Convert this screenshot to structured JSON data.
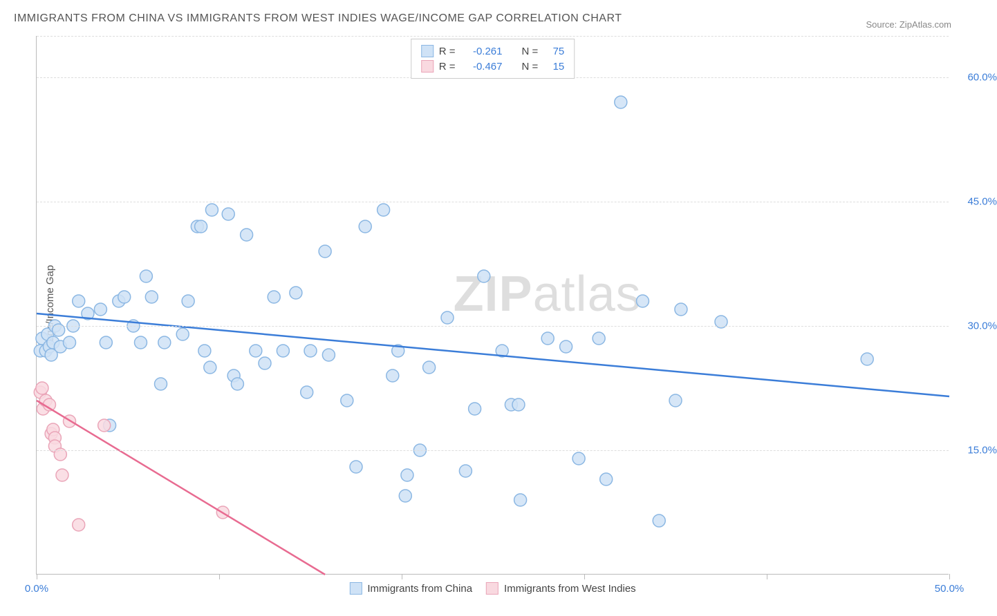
{
  "title": "IMMIGRANTS FROM CHINA VS IMMIGRANTS FROM WEST INDIES WAGE/INCOME GAP CORRELATION CHART",
  "source": "Source: ZipAtlas.com",
  "ylabel": "Wage/Income Gap",
  "watermark_bold": "ZIP",
  "watermark_rest": "atlas",
  "chart": {
    "type": "scatter",
    "xlim": [
      0,
      50
    ],
    "ylim": [
      0,
      65
    ],
    "xtick_positions": [
      0,
      10,
      20,
      30,
      40,
      50
    ],
    "xtick_labeled": {
      "0": "0.0%",
      "50": "50.0%"
    },
    "ytick_positions": [
      15,
      30,
      45,
      60
    ],
    "ytick_labels": [
      "15.0%",
      "30.0%",
      "45.0%",
      "60.0%"
    ],
    "grid_color": "#dddddd",
    "axis_color": "#bbbbbb",
    "background_color": "#ffffff",
    "xtick_label_color": "#3b7dd8",
    "ytick_label_color": "#3b7dd8",
    "marker_radius": 9,
    "marker_stroke_width": 1.5,
    "trendline_width": 2.5,
    "series": [
      {
        "name": "Immigrants from China",
        "fill": "#cfe2f6",
        "stroke": "#8bb7e3",
        "trend_color": "#3b7dd8",
        "R": "-0.261",
        "N": "75",
        "trendline": {
          "x1": 0,
          "y1": 31.5,
          "x2": 50,
          "y2": 21.5
        },
        "points": [
          [
            0.2,
            27
          ],
          [
            0.3,
            28.5
          ],
          [
            0.5,
            27
          ],
          [
            0.6,
            29
          ],
          [
            0.7,
            27.5
          ],
          [
            0.8,
            26.5
          ],
          [
            0.9,
            28
          ],
          [
            1.0,
            30
          ],
          [
            1.2,
            29.5
          ],
          [
            1.3,
            27.5
          ],
          [
            1.8,
            28
          ],
          [
            2.0,
            30
          ],
          [
            2.3,
            33
          ],
          [
            2.8,
            31.5
          ],
          [
            3.5,
            32
          ],
          [
            3.8,
            28
          ],
          [
            4.0,
            18
          ],
          [
            4.5,
            33
          ],
          [
            4.8,
            33.5
          ],
          [
            5.3,
            30
          ],
          [
            5.7,
            28
          ],
          [
            6.0,
            36
          ],
          [
            6.3,
            33.5
          ],
          [
            6.8,
            23
          ],
          [
            7.0,
            28
          ],
          [
            8.0,
            29
          ],
          [
            8.3,
            33
          ],
          [
            8.8,
            42
          ],
          [
            9.0,
            42
          ],
          [
            9.2,
            27
          ],
          [
            9.5,
            25
          ],
          [
            9.6,
            44
          ],
          [
            10.5,
            43.5
          ],
          [
            10.8,
            24
          ],
          [
            11.0,
            23
          ],
          [
            11.5,
            41
          ],
          [
            12.0,
            27
          ],
          [
            12.5,
            25.5
          ],
          [
            13.0,
            33.5
          ],
          [
            13.5,
            27
          ],
          [
            14.2,
            34
          ],
          [
            14.8,
            22
          ],
          [
            15.0,
            27
          ],
          [
            15.8,
            39
          ],
          [
            16.0,
            26.5
          ],
          [
            17.0,
            21
          ],
          [
            17.5,
            13
          ],
          [
            18.0,
            42
          ],
          [
            19.0,
            44
          ],
          [
            19.5,
            24
          ],
          [
            19.8,
            27
          ],
          [
            20.2,
            9.5
          ],
          [
            20.3,
            12
          ],
          [
            21.0,
            15
          ],
          [
            21.5,
            25
          ],
          [
            22.5,
            31
          ],
          [
            23.5,
            12.5
          ],
          [
            24.0,
            20
          ],
          [
            24.5,
            36
          ],
          [
            25.5,
            27
          ],
          [
            26.0,
            20.5
          ],
          [
            26.4,
            20.5
          ],
          [
            26.5,
            9
          ],
          [
            28.0,
            28.5
          ],
          [
            29.0,
            27.5
          ],
          [
            29.7,
            14
          ],
          [
            30.8,
            28.5
          ],
          [
            31.2,
            11.5
          ],
          [
            32.0,
            57
          ],
          [
            33.2,
            33
          ],
          [
            34.1,
            6.5
          ],
          [
            35.0,
            21
          ],
          [
            35.3,
            32
          ],
          [
            37.5,
            30.5
          ],
          [
            45.5,
            26
          ]
        ]
      },
      {
        "name": "Immigrants from West Indies",
        "fill": "#f9d9e0",
        "stroke": "#eaa5b8",
        "trend_color": "#e86b91",
        "R": "-0.467",
        "N": "15",
        "trendline": {
          "x1": 0,
          "y1": 21,
          "x2": 15.8,
          "y2": 0
        },
        "points": [
          [
            0.2,
            22
          ],
          [
            0.3,
            22.5
          ],
          [
            0.35,
            20
          ],
          [
            0.5,
            21
          ],
          [
            0.7,
            20.5
          ],
          [
            0.8,
            17
          ],
          [
            0.9,
            17.5
          ],
          [
            1.0,
            16.5
          ],
          [
            1.0,
            15.5
          ],
          [
            1.3,
            14.5
          ],
          [
            1.4,
            12
          ],
          [
            1.8,
            18.5
          ],
          [
            2.3,
            6
          ],
          [
            3.7,
            18
          ],
          [
            10.2,
            7.5
          ]
        ]
      }
    ]
  },
  "legend_top": {
    "R_label": "R =",
    "N_label": "N ="
  },
  "legend_bottom": [
    {
      "label": "Immigrants from China",
      "fill": "#cfe2f6",
      "stroke": "#8bb7e3"
    },
    {
      "label": "Immigrants from West Indies",
      "fill": "#f9d9e0",
      "stroke": "#eaa5b8"
    }
  ]
}
